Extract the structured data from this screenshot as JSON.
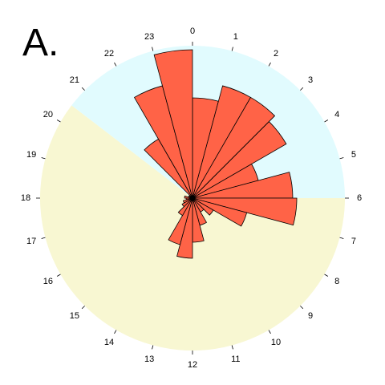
{
  "panel_label": "A.",
  "chart_data": {
    "type": "rose",
    "categories": [
      "0",
      "1",
      "2",
      "3",
      "4",
      "5",
      "6",
      "7",
      "8",
      "9",
      "10",
      "11",
      "12",
      "13",
      "14",
      "15",
      "16",
      "17",
      "18",
      "19",
      "20",
      "21",
      "22",
      "23"
    ],
    "values": [
      125,
      145,
      145,
      135,
      85,
      125,
      130,
      70,
      30,
      20,
      35,
      55,
      75,
      60,
      25,
      15,
      12,
      8,
      10,
      5,
      5,
      85,
      145,
      185
    ],
    "rlim": [
      0,
      190
    ],
    "bar_color": "#FF6347",
    "background_sectors": [
      {
        "from_hour": 23.3,
        "to_hour": 6.0,
        "color": "#E1FBFE"
      },
      {
        "from_hour": 6.0,
        "to_hour": 20.5,
        "color": "#F8F7D2"
      },
      {
        "from_hour": 20.5,
        "to_hour": 23.3,
        "color": "#E1FBFE"
      }
    ]
  }
}
